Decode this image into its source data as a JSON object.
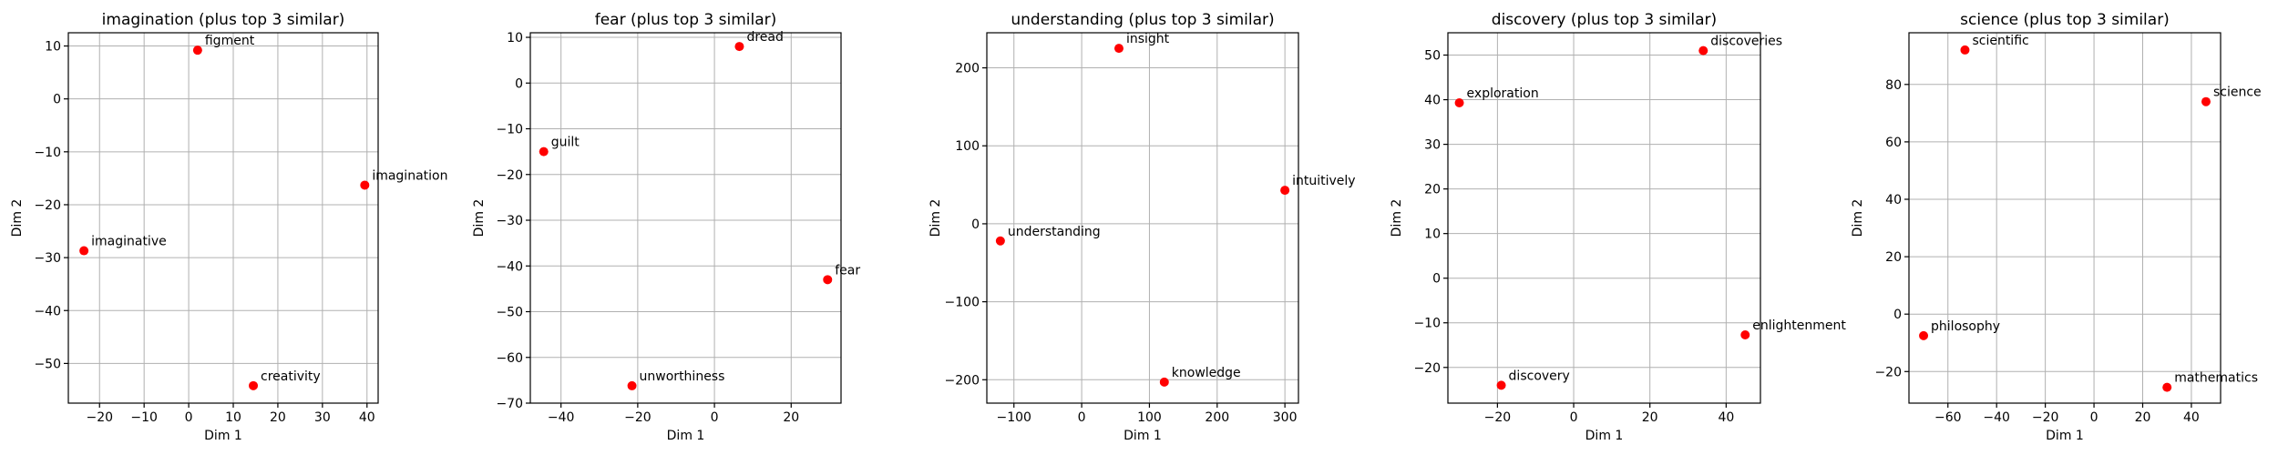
{
  "chart_data": [
    {
      "type": "scatter",
      "title": "imagination (plus top 3 similar)",
      "xlabel": "Dim 1",
      "ylabel": "Dim 2",
      "xlim": [
        -27,
        42.5
      ],
      "ylim": [
        -57.5,
        12.5
      ],
      "xticks": [
        -20,
        -10,
        0,
        10,
        20,
        30,
        40
      ],
      "yticks": [
        -50,
        -40,
        -30,
        -20,
        -10,
        0,
        10
      ],
      "grid": true,
      "color": "#ff0000",
      "points": [
        {
          "label": "figment",
          "x": 2,
          "y": 9.2
        },
        {
          "label": "imagination",
          "x": 39.5,
          "y": -16.3
        },
        {
          "label": "imaginative",
          "x": -23.5,
          "y": -28.7
        },
        {
          "label": "creativity",
          "x": 14.5,
          "y": -54.2
        }
      ]
    },
    {
      "type": "scatter",
      "title": "fear (plus top 3 similar)",
      "xlabel": "Dim 1",
      "ylabel": "Dim 2",
      "xlim": [
        -48,
        33
      ],
      "ylim": [
        -70,
        11
      ],
      "xticks": [
        -40,
        -20,
        0,
        20
      ],
      "yticks": [
        -70,
        -60,
        -50,
        -40,
        -30,
        -20,
        -10,
        0,
        10
      ],
      "grid": true,
      "color": "#ff0000",
      "points": [
        {
          "label": "dread",
          "x": 6.5,
          "y": 8
        },
        {
          "label": "guilt",
          "x": -44.5,
          "y": -15
        },
        {
          "label": "fear",
          "x": 29.5,
          "y": -43
        },
        {
          "label": "unworthiness",
          "x": -21.5,
          "y": -66.2
        }
      ]
    },
    {
      "type": "scatter",
      "title": "understanding (plus top 3 similar)",
      "xlabel": "Dim 1",
      "ylabel": "Dim 2",
      "xlim": [
        -140,
        320
      ],
      "ylim": [
        -230,
        245
      ],
      "xticks": [
        -100,
        0,
        100,
        200,
        300
      ],
      "yticks": [
        -200,
        -100,
        0,
        100,
        200
      ],
      "grid": true,
      "color": "#ff0000",
      "points": [
        {
          "label": "insight",
          "x": 55,
          "y": 225
        },
        {
          "label": "intuitively",
          "x": 300,
          "y": 43
        },
        {
          "label": "understanding",
          "x": -120,
          "y": -22
        },
        {
          "label": "knowledge",
          "x": 122,
          "y": -203
        }
      ]
    },
    {
      "type": "scatter",
      "title": "discovery (plus top 3 similar)",
      "xlabel": "Dim 1",
      "ylabel": "Dim 2",
      "xlim": [
        -33,
        49
      ],
      "ylim": [
        -28,
        55
      ],
      "xticks": [
        -20,
        0,
        20,
        40
      ],
      "yticks": [
        -20,
        -10,
        0,
        10,
        20,
        30,
        40,
        50
      ],
      "grid": true,
      "color": "#ff0000",
      "points": [
        {
          "label": "discoveries",
          "x": 34,
          "y": 51
        },
        {
          "label": "exploration",
          "x": -30,
          "y": 39.3
        },
        {
          "label": "enlightenment",
          "x": 45,
          "y": -12.7
        },
        {
          "label": "discovery",
          "x": -19,
          "y": -24
        }
      ]
    },
    {
      "type": "scatter",
      "title": "science (plus top 3 similar)",
      "xlabel": "Dim 1",
      "ylabel": "Dim 2",
      "xlim": [
        -76,
        52
      ],
      "ylim": [
        -31,
        98
      ],
      "xticks": [
        -60,
        -40,
        -20,
        0,
        20,
        40
      ],
      "yticks": [
        -20,
        0,
        20,
        40,
        60,
        80
      ],
      "grid": true,
      "color": "#ff0000",
      "points": [
        {
          "label": "scientific",
          "x": -53,
          "y": 92
        },
        {
          "label": "science",
          "x": 46,
          "y": 74
        },
        {
          "label": "philosophy",
          "x": -70,
          "y": -7.5
        },
        {
          "label": "mathematics",
          "x": 30,
          "y": -25.5
        }
      ]
    }
  ]
}
